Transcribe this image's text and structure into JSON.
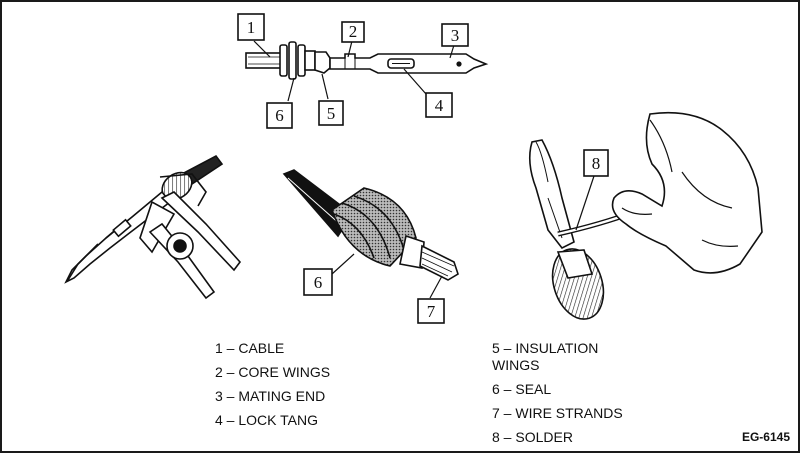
{
  "figure_code": "EG-6145",
  "callouts": [
    "1",
    "2",
    "3",
    "4",
    "5",
    "6",
    "7",
    "8"
  ],
  "legend": {
    "left": [
      "1 – CABLE",
      "2 – CORE WINGS",
      "3 – MATING END",
      "4 – LOCK TANG"
    ],
    "right": [
      "5 – INSULATION\nWINGS",
      "6 – SEAL",
      "7 – WIRE STRANDS",
      "8 – SOLDER"
    ]
  }
}
